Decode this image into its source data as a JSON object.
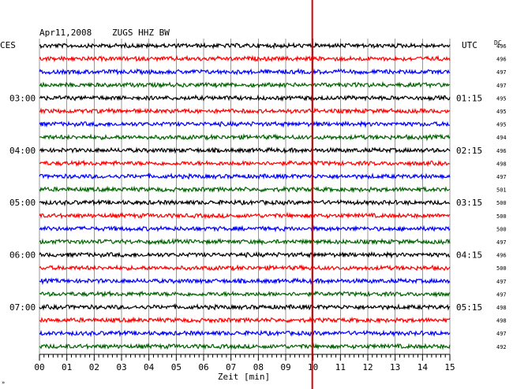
{
  "header": {
    "date": "Apr11,2008",
    "station": "ZUGS HHZ BW",
    "left_timezone": "CES",
    "right_timezone": "UTC",
    "dc_label": "DC"
  },
  "chart_data": {
    "type": "line",
    "title": "Apr11,2008   ZUGS HHZ BW",
    "xlabel": "Zeit [min]",
    "xlim": [
      0,
      15
    ],
    "x_ticks": [
      "00",
      "01",
      "02",
      "03",
      "04",
      "05",
      "06",
      "07",
      "08",
      "09",
      "10",
      "11",
      "12",
      "13",
      "14",
      "15"
    ],
    "left_hour_labels": [
      "03:00",
      "04:00",
      "05:00",
      "06:00",
      "07:00"
    ],
    "right_hour_labels": [
      "01:15",
      "02:15",
      "03:15",
      "04:15",
      "05:15"
    ],
    "trace_colors": [
      "#000000",
      "#ff0000",
      "#0000ff",
      "#006400"
    ],
    "dc_offsets": [
      496,
      496,
      497,
      497,
      495,
      495,
      495,
      494,
      496,
      498,
      497,
      501,
      500,
      500,
      500,
      497,
      496,
      500,
      497,
      497,
      498,
      498,
      497,
      492
    ],
    "event_marker_minute": 10.0,
    "event_color": "#dd0000",
    "grid": true
  },
  "footer": {
    "corner_mark": "»"
  }
}
